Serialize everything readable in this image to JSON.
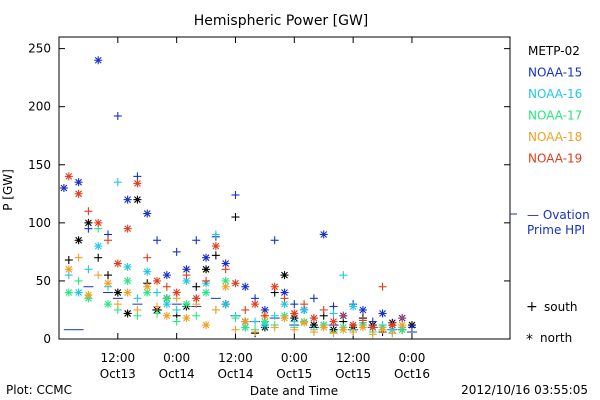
{
  "chart_data": {
    "type": "scatter",
    "title": "Hemispheric Power [GW]",
    "ylabel": "P [GW]",
    "xlabel": "Date and Time",
    "ylim": [
      0,
      260
    ],
    "yticks": [
      0,
      50,
      100,
      150,
      200,
      250
    ],
    "xlim": [
      -18,
      28
    ],
    "xticks": [
      {
        "hour": -12,
        "line1": "12:00",
        "line2": "Oct13"
      },
      {
        "hour": -6,
        "line1": "0:00",
        "line2": "Oct14"
      },
      {
        "hour": 0,
        "line1": "12:00",
        "line2": "Oct14"
      },
      {
        "hour": 6,
        "line1": "0:00",
        "line2": "Oct15"
      },
      {
        "hour": 12,
        "line1": "12:00",
        "line2": "Oct15"
      },
      {
        "hour": 18,
        "line1": "0:00",
        "line2": "Oct16"
      }
    ],
    "legend_position": "right",
    "marker_legend": {
      "south": "south",
      "north": "north"
    },
    "series": [
      {
        "name": "METP-02",
        "color": "#000000",
        "points": [
          [
            -17,
            68,
            "s"
          ],
          [
            -16,
            85,
            "n"
          ],
          [
            -15,
            100,
            "n"
          ],
          [
            -14,
            70,
            "s"
          ],
          [
            -13,
            55,
            "s"
          ],
          [
            -12,
            40,
            "n"
          ],
          [
            -11,
            22,
            "n"
          ],
          [
            -10,
            120,
            "n"
          ],
          [
            -9,
            48,
            "s"
          ],
          [
            -8,
            25,
            "n"
          ],
          [
            -7,
            35,
            "n"
          ],
          [
            -6,
            20,
            "s"
          ],
          [
            -5,
            28,
            "n"
          ],
          [
            -4,
            45,
            "s"
          ],
          [
            -3,
            60,
            "n"
          ],
          [
            -2,
            72,
            "s"
          ],
          [
            -1,
            30,
            "n"
          ],
          [
            0,
            105,
            "s"
          ],
          [
            1,
            15,
            "n"
          ],
          [
            2,
            5,
            "s"
          ],
          [
            3,
            10,
            "n"
          ],
          [
            4,
            40,
            "s"
          ],
          [
            5,
            55,
            "n"
          ],
          [
            6,
            18,
            "n"
          ],
          [
            7,
            25,
            "s"
          ],
          [
            8,
            12,
            "n"
          ],
          [
            9,
            20,
            "s"
          ],
          [
            10,
            8,
            "n"
          ],
          [
            11,
            15,
            "s"
          ],
          [
            12,
            10,
            "n"
          ],
          [
            13,
            18,
            "s"
          ],
          [
            14,
            12,
            "n"
          ],
          [
            15,
            6,
            "s"
          ],
          [
            16,
            14,
            "n"
          ],
          [
            17,
            8,
            "s"
          ],
          [
            18,
            12,
            "n"
          ]
        ]
      },
      {
        "name": "NOAA-15",
        "color": "#1530c8",
        "points": [
          [
            -17.5,
            130,
            "n"
          ],
          [
            -16,
            135,
            "n"
          ],
          [
            -15,
            95,
            "s"
          ],
          [
            -14,
            240,
            "n"
          ],
          [
            -13,
            90,
            "s"
          ],
          [
            -12,
            192,
            "s"
          ],
          [
            -11,
            120,
            "n"
          ],
          [
            -10,
            140,
            "s"
          ],
          [
            -9,
            108,
            "n"
          ],
          [
            -8,
            85,
            "s"
          ],
          [
            -7,
            55,
            "n"
          ],
          [
            -6,
            75,
            "s"
          ],
          [
            -5,
            60,
            "n"
          ],
          [
            -4,
            85,
            "s"
          ],
          [
            -3,
            70,
            "n"
          ],
          [
            -2,
            88,
            "s"
          ],
          [
            -1,
            65,
            "n"
          ],
          [
            0,
            124,
            "s"
          ],
          [
            1,
            45,
            "n"
          ],
          [
            2,
            35,
            "s"
          ],
          [
            3,
            25,
            "n"
          ],
          [
            4,
            85,
            "s"
          ],
          [
            5,
            40,
            "n"
          ],
          [
            6,
            30,
            "s"
          ],
          [
            7,
            25,
            "n"
          ],
          [
            8,
            35,
            "s"
          ],
          [
            9,
            90,
            "n"
          ],
          [
            10,
            28,
            "s"
          ],
          [
            11,
            20,
            "n"
          ],
          [
            12,
            30,
            "s"
          ],
          [
            13,
            25,
            "n"
          ],
          [
            14,
            15,
            "s"
          ],
          [
            15,
            22,
            "n"
          ],
          [
            16,
            12,
            "s"
          ],
          [
            17,
            18,
            "n"
          ],
          [
            18,
            10,
            "s"
          ]
        ]
      },
      {
        "name": "NOAA-16",
        "color": "#1ec8e6",
        "points": [
          [
            -17,
            55,
            "s"
          ],
          [
            -16,
            40,
            "n"
          ],
          [
            -15,
            60,
            "s"
          ],
          [
            -14,
            80,
            "n"
          ],
          [
            -13,
            45,
            "s"
          ],
          [
            -12,
            135,
            "s"
          ],
          [
            -11,
            62,
            "n"
          ],
          [
            -10,
            35,
            "s"
          ],
          [
            -9,
            58,
            "n"
          ],
          [
            -8,
            40,
            "s"
          ],
          [
            -7,
            30,
            "n"
          ],
          [
            -6,
            25,
            "s"
          ],
          [
            -5,
            50,
            "n"
          ],
          [
            -4,
            35,
            "s"
          ],
          [
            -3,
            48,
            "n"
          ],
          [
            -2,
            90,
            "s"
          ],
          [
            -1,
            30,
            "n"
          ],
          [
            0,
            20,
            "s"
          ],
          [
            1,
            10,
            "n"
          ],
          [
            2,
            15,
            "s"
          ],
          [
            3,
            12,
            "n"
          ],
          [
            4,
            20,
            "s"
          ],
          [
            5,
            30,
            "n"
          ],
          [
            6,
            15,
            "s"
          ],
          [
            7,
            25,
            "n"
          ],
          [
            8,
            18,
            "s"
          ],
          [
            9,
            12,
            "n"
          ],
          [
            10,
            22,
            "s"
          ],
          [
            11,
            55,
            "s"
          ],
          [
            12,
            28,
            "n"
          ],
          [
            13,
            14,
            "s"
          ],
          [
            14,
            10,
            "n"
          ],
          [
            15,
            12,
            "s"
          ],
          [
            16,
            8,
            "n"
          ],
          [
            17,
            10,
            "s"
          ]
        ]
      },
      {
        "name": "NOAA-17",
        "color": "#28e682",
        "points": [
          [
            -17,
            40,
            "n"
          ],
          [
            -16,
            50,
            "s"
          ],
          [
            -15,
            35,
            "n"
          ],
          [
            -14,
            95,
            "s"
          ],
          [
            -13,
            30,
            "n"
          ],
          [
            -12,
            25,
            "s"
          ],
          [
            -11,
            50,
            "n"
          ],
          [
            -10,
            20,
            "s"
          ],
          [
            -9,
            40,
            "n"
          ],
          [
            -8,
            22,
            "s"
          ],
          [
            -7,
            35,
            "n"
          ],
          [
            -6,
            15,
            "s"
          ],
          [
            -5,
            30,
            "n"
          ],
          [
            -4,
            20,
            "s"
          ],
          [
            -3,
            40,
            "n"
          ],
          [
            -2,
            25,
            "s"
          ],
          [
            -1,
            50,
            "n"
          ],
          [
            0,
            18,
            "s"
          ],
          [
            1,
            10,
            "n"
          ],
          [
            2,
            8,
            "s"
          ],
          [
            3,
            15,
            "n"
          ],
          [
            4,
            12,
            "s"
          ],
          [
            5,
            20,
            "n"
          ],
          [
            6,
            10,
            "s"
          ],
          [
            7,
            15,
            "n"
          ],
          [
            8,
            8,
            "s"
          ],
          [
            9,
            12,
            "n"
          ],
          [
            10,
            6,
            "s"
          ],
          [
            11,
            10,
            "n"
          ],
          [
            12,
            8,
            "s"
          ],
          [
            13,
            12,
            "n"
          ],
          [
            14,
            6,
            "s"
          ],
          [
            15,
            10,
            "n"
          ],
          [
            16,
            5,
            "s"
          ],
          [
            17,
            8,
            "n"
          ]
        ]
      },
      {
        "name": "NOAA-18",
        "color": "#f0a028",
        "points": [
          [
            -17,
            60,
            "n"
          ],
          [
            -16,
            70,
            "s"
          ],
          [
            -15,
            38,
            "n"
          ],
          [
            -14,
            55,
            "s"
          ],
          [
            -13,
            48,
            "n"
          ],
          [
            -12,
            30,
            "s"
          ],
          [
            -11,
            40,
            "n"
          ],
          [
            -10,
            25,
            "s"
          ],
          [
            -9,
            45,
            "n"
          ],
          [
            -8,
            28,
            "s"
          ],
          [
            -7,
            20,
            "n"
          ],
          [
            -6,
            35,
            "s"
          ],
          [
            -5,
            18,
            "n"
          ],
          [
            -4,
            30,
            "s"
          ],
          [
            -3,
            12,
            "n"
          ],
          [
            -2,
            25,
            "s"
          ],
          [
            -1,
            45,
            "n"
          ],
          [
            0,
            8,
            "s"
          ],
          [
            1,
            15,
            "n"
          ],
          [
            2,
            6,
            "s"
          ],
          [
            3,
            20,
            "n"
          ],
          [
            4,
            10,
            "s"
          ],
          [
            5,
            18,
            "n"
          ],
          [
            6,
            8,
            "s"
          ],
          [
            7,
            14,
            "n"
          ],
          [
            8,
            6,
            "s"
          ],
          [
            9,
            10,
            "n"
          ],
          [
            10,
            5,
            "s"
          ],
          [
            11,
            8,
            "n"
          ],
          [
            12,
            6,
            "s"
          ],
          [
            13,
            10,
            "n"
          ],
          [
            14,
            4,
            "s"
          ],
          [
            15,
            8,
            "n"
          ],
          [
            16,
            5,
            "s"
          ],
          [
            17,
            12,
            "n"
          ]
        ]
      },
      {
        "name": "NOAA-19",
        "color": "#e03c1e",
        "points": [
          [
            -17,
            140,
            "n"
          ],
          [
            -16,
            125,
            "n"
          ],
          [
            -15,
            110,
            "s"
          ],
          [
            -14,
            100,
            "n"
          ],
          [
            -13,
            85,
            "s"
          ],
          [
            -12,
            65,
            "n"
          ],
          [
            -11,
            95,
            "n"
          ],
          [
            -10,
            134,
            "n"
          ],
          [
            -9,
            70,
            "s"
          ],
          [
            -8,
            50,
            "n"
          ],
          [
            -7,
            45,
            "s"
          ],
          [
            -6,
            40,
            "n"
          ],
          [
            -5,
            55,
            "s"
          ],
          [
            -4,
            35,
            "n"
          ],
          [
            -3,
            50,
            "s"
          ],
          [
            -2,
            80,
            "n"
          ],
          [
            -1,
            60,
            "s"
          ],
          [
            0,
            48,
            "n"
          ],
          [
            1,
            25,
            "s"
          ],
          [
            2,
            30,
            "n"
          ],
          [
            3,
            20,
            "s"
          ],
          [
            4,
            45,
            "n"
          ],
          [
            5,
            35,
            "s"
          ],
          [
            6,
            22,
            "n"
          ],
          [
            7,
            30,
            "s"
          ],
          [
            8,
            18,
            "n"
          ],
          [
            9,
            25,
            "s"
          ],
          [
            10,
            15,
            "n"
          ],
          [
            11,
            20,
            "s"
          ],
          [
            12,
            12,
            "n"
          ],
          [
            13,
            16,
            "s"
          ],
          [
            14,
            10,
            "n"
          ],
          [
            15,
            45,
            "s"
          ],
          [
            16,
            12,
            "n"
          ],
          [
            17,
            18,
            "s"
          ]
        ]
      }
    ],
    "ovation": {
      "label_line1": "— Ovation",
      "label_line2": "Prime HPI",
      "color": "#1530c8",
      "points": [
        [
          -17,
          8
        ],
        [
          -16,
          8
        ],
        [
          -15,
          45
        ],
        [
          -13,
          40
        ],
        [
          -12,
          35
        ],
        [
          -10,
          30
        ],
        [
          -8,
          25
        ],
        [
          -6,
          30
        ],
        [
          -4,
          28
        ],
        [
          -2,
          35
        ],
        [
          0,
          20
        ],
        [
          2,
          15
        ],
        [
          4,
          18
        ],
        [
          6,
          12
        ],
        [
          8,
          10
        ],
        [
          10,
          12
        ],
        [
          12,
          8
        ],
        [
          14,
          10
        ],
        [
          16,
          8
        ],
        [
          18,
          6
        ]
      ]
    }
  },
  "footer": {
    "plot_credit": "Plot: CCMC",
    "timestamp": "2012/10/16 03:55:05"
  }
}
